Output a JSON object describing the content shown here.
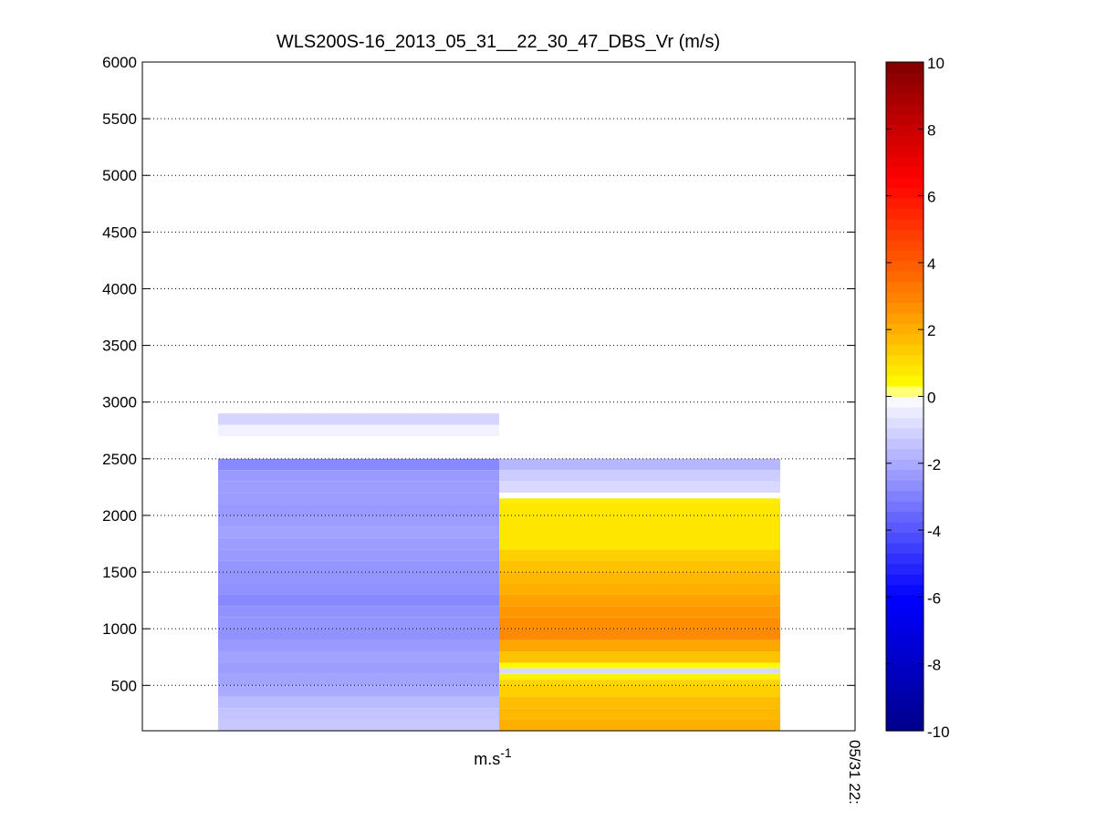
{
  "chart_data": {
    "type": "heatmap",
    "title": "WLS200S-16_2013_05_31__22_30_47_DBS_Vr (m/s)",
    "xlabel": "m.s",
    "xlabel_superscript": "-1",
    "x_tick_labels": [
      "05/31 22:"
    ],
    "ylim": [
      100,
      6000
    ],
    "yticks": [
      500,
      1000,
      1500,
      2000,
      2500,
      3000,
      3500,
      4000,
      4500,
      5000,
      5500,
      6000
    ],
    "y_grid": "dotted",
    "colorbar": {
      "range": [
        -10,
        10
      ],
      "ticks": [
        -10,
        -8,
        -6,
        -4,
        -2,
        0,
        2,
        4,
        6,
        8,
        10
      ],
      "colormap": "blue-white-yellow-red",
      "colors": {
        "min": "#00008b",
        "neg_mid": "#0000ff",
        "zero": "#ffffff",
        "pos_low": "#ffff00",
        "pos_mid": "#ff8000",
        "pos_high": "#ff0000",
        "max": "#800000"
      }
    },
    "columns": [
      {
        "column": 1,
        "cells": [
          {
            "y0": 2700,
            "y1": 2800,
            "v": -0.3
          },
          {
            "y0": 2800,
            "y1": 2900,
            "v": -1.0
          },
          {
            "y0": 2400,
            "y1": 2500,
            "v": -2.8
          },
          {
            "y0": 2300,
            "y1": 2400,
            "v": -2.4
          },
          {
            "y0": 2200,
            "y1": 2300,
            "v": -2.3
          },
          {
            "y0": 2100,
            "y1": 2200,
            "v": -2.3
          },
          {
            "y0": 2000,
            "y1": 2100,
            "v": -2.4
          },
          {
            "y0": 1900,
            "y1": 2000,
            "v": -2.3
          },
          {
            "y0": 1800,
            "y1": 1900,
            "v": -2.2
          },
          {
            "y0": 1700,
            "y1": 1800,
            "v": -2.3
          },
          {
            "y0": 1600,
            "y1": 1700,
            "v": -2.4
          },
          {
            "y0": 1500,
            "y1": 1600,
            "v": -2.5
          },
          {
            "y0": 1400,
            "y1": 1500,
            "v": -2.5
          },
          {
            "y0": 1300,
            "y1": 1400,
            "v": -2.6
          },
          {
            "y0": 1200,
            "y1": 1300,
            "v": -2.8
          },
          {
            "y0": 1100,
            "y1": 1200,
            "v": -2.6
          },
          {
            "y0": 1000,
            "y1": 1100,
            "v": -2.5
          },
          {
            "y0": 900,
            "y1": 1000,
            "v": -2.6
          },
          {
            "y0": 800,
            "y1": 900,
            "v": -2.4
          },
          {
            "y0": 700,
            "y1": 800,
            "v": -2.2
          },
          {
            "y0": 600,
            "y1": 700,
            "v": -2.3
          },
          {
            "y0": 500,
            "y1": 600,
            "v": -2.2
          },
          {
            "y0": 400,
            "y1": 500,
            "v": -2.0
          },
          {
            "y0": 300,
            "y1": 400,
            "v": -1.6
          },
          {
            "y0": 200,
            "y1": 300,
            "v": -1.4
          },
          {
            "y0": 100,
            "y1": 200,
            "v": -1.3
          }
        ]
      },
      {
        "column": 2,
        "cells": [
          {
            "y0": 2400,
            "y1": 2500,
            "v": -1.7
          },
          {
            "y0": 2300,
            "y1": 2400,
            "v": -1.2
          },
          {
            "y0": 2200,
            "y1": 2300,
            "v": -0.9
          },
          {
            "y0": 2100,
            "y1": 2150,
            "v": 0.7
          },
          {
            "y0": 1700,
            "y1": 2100,
            "v": 0.8
          },
          {
            "y0": 1600,
            "y1": 1700,
            "v": 1.3
          },
          {
            "y0": 1500,
            "y1": 1600,
            "v": 1.6
          },
          {
            "y0": 1400,
            "y1": 1500,
            "v": 1.8
          },
          {
            "y0": 1300,
            "y1": 1400,
            "v": 2.0
          },
          {
            "y0": 1200,
            "y1": 1300,
            "v": 2.3
          },
          {
            "y0": 1100,
            "y1": 1200,
            "v": 2.5
          },
          {
            "y0": 1000,
            "y1": 1100,
            "v": 2.7
          },
          {
            "y0": 900,
            "y1": 1000,
            "v": 2.8
          },
          {
            "y0": 800,
            "y1": 900,
            "v": 2.2
          },
          {
            "y0": 700,
            "y1": 800,
            "v": 1.6
          },
          {
            "y0": 650,
            "y1": 700,
            "v": 0.4
          },
          {
            "y0": 600,
            "y1": 650,
            "v": -0.9
          },
          {
            "y0": 550,
            "y1": 600,
            "v": 0.6
          },
          {
            "y0": 500,
            "y1": 550,
            "v": 1.2
          },
          {
            "y0": 400,
            "y1": 500,
            "v": 1.3
          },
          {
            "y0": 300,
            "y1": 400,
            "v": 1.7
          },
          {
            "y0": 200,
            "y1": 300,
            "v": 1.8
          },
          {
            "y0": 100,
            "y1": 200,
            "v": 2.0
          }
        ]
      }
    ]
  }
}
